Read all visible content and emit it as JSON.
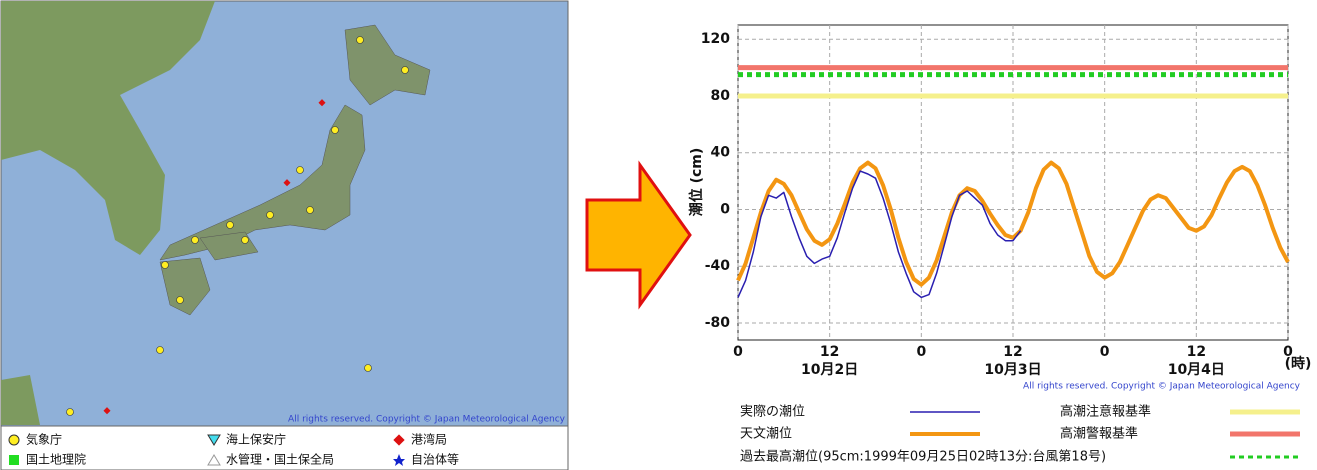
{
  "map": {
    "copyright": "All rights reserved. Copyright © Japan Meteorological Agency",
    "legend": [
      {
        "label": "気象庁",
        "color": "#ffee22"
      },
      {
        "label": "国土地理院",
        "color": "#22dd22"
      },
      {
        "label": "海上保安庁",
        "color": "#44ddee"
      },
      {
        "label": "水管理・国土保全局",
        "color": "#999999"
      },
      {
        "label": "港湾局",
        "color": "#dd1111"
      },
      {
        "label": "自治体等",
        "color": "#1122cc"
      }
    ]
  },
  "chart_data": {
    "type": "line",
    "y_label": "潮位 (cm)",
    "x_unit": "(時)",
    "copyright": "All rights reserved. Copyright © Japan Meteorological Agency",
    "xlim": [
      0,
      72
    ],
    "ylim": [
      -92,
      130
    ],
    "xticks": [
      0,
      12,
      {
        "value": 24,
        "label": "0"
      },
      {
        "value": 36,
        "label": "12"
      },
      {
        "value": 48,
        "label": "0"
      },
      {
        "value": 60,
        "label": "12"
      },
      {
        "value": 72,
        "label": "0"
      }
    ],
    "yticks": [
      -80,
      -40,
      0,
      40,
      80,
      120
    ],
    "grid": true,
    "date_labels": [
      {
        "x": 12,
        "label": "10月2日"
      },
      {
        "x": 36,
        "label": "10月3日"
      },
      {
        "x": 60,
        "label": "10月4日"
      }
    ],
    "x": [
      0,
      1,
      2,
      3,
      4,
      5,
      6,
      7,
      8,
      9,
      10,
      11,
      12,
      13,
      14,
      15,
      16,
      17,
      18,
      19,
      20,
      21,
      22,
      23,
      24,
      25,
      26,
      27,
      28,
      29,
      30,
      31,
      32,
      33,
      34,
      35,
      36,
      37,
      38,
      39,
      40,
      41,
      42,
      43,
      44,
      45,
      46,
      47,
      48,
      49,
      50,
      51,
      52,
      53,
      54,
      55,
      56,
      57,
      58,
      59,
      60,
      61,
      62,
      63,
      64,
      65,
      66,
      67,
      68,
      69,
      70,
      71,
      72
    ],
    "series": [
      {
        "name": "実際の潮位",
        "color": "#2a1fb0",
        "values": [
          -62,
          -50,
          -30,
          -5,
          10,
          8,
          12,
          -5,
          -20,
          -33,
          -38,
          -35,
          -33,
          -20,
          -2,
          15,
          27,
          25,
          22,
          8,
          -10,
          -30,
          -45,
          -58,
          -62,
          -60,
          -45,
          -25,
          -5,
          10,
          13,
          8,
          3,
          -10,
          -18,
          -22,
          -22,
          -15,
          null,
          null,
          null,
          null,
          null,
          null,
          null,
          null,
          null,
          null,
          null,
          null,
          null,
          null,
          null,
          null,
          null,
          null,
          null,
          null,
          null,
          null,
          null,
          null,
          null,
          null,
          null,
          null,
          null,
          null,
          null,
          null,
          null,
          null,
          null
        ]
      },
      {
        "name": "天文潮位",
        "color": "#f39612",
        "values": [
          -50,
          -38,
          -20,
          -2,
          13,
          21,
          18,
          10,
          -2,
          -14,
          -22,
          -25,
          -21,
          -10,
          4,
          19,
          29,
          33,
          29,
          17,
          0,
          -20,
          -37,
          -49,
          -53,
          -48,
          -36,
          -19,
          -2,
          10,
          15,
          13,
          6,
          -3,
          -11,
          -18,
          -20,
          -15,
          -2,
          15,
          28,
          33,
          29,
          18,
          1,
          -16,
          -33,
          -44,
          -48,
          -45,
          -37,
          -25,
          -13,
          -1,
          7,
          10,
          8,
          1,
          -6,
          -13,
          -15,
          -12,
          -4,
          8,
          19,
          27,
          30,
          27,
          17,
          3,
          -13,
          -27,
          -37
        ]
      }
    ],
    "reference_lines": [
      {
        "name": "高潮注意報基準",
        "color": "#f5f08c",
        "value": 80
      },
      {
        "name": "高潮警報基準",
        "color": "#f2756b",
        "value": 100
      },
      {
        "name": "過去最高潮位(95cm:1999年09月25日02時13分:台風第18号)",
        "color": "#22cc22",
        "value": 95,
        "dashed": true
      }
    ]
  }
}
